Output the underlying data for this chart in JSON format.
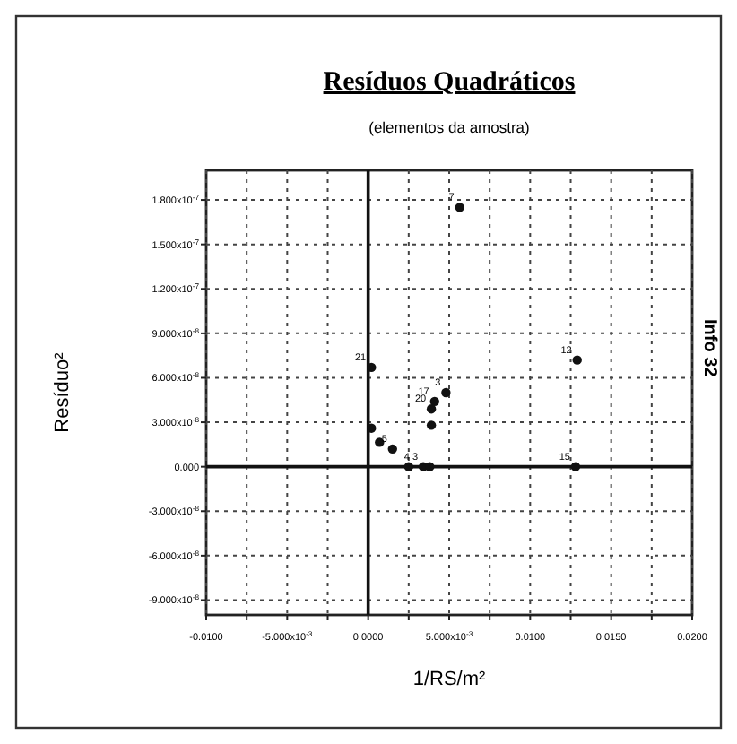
{
  "chart_data": {
    "type": "scatter",
    "title": "Resíduos Quadráticos",
    "subtitle": "(elementos da amostra)",
    "xlabel": "1/RS/m²",
    "ylabel": "Resíduo²",
    "x": [
      0.00565,
      0.0129,
      0.0002,
      0.0048,
      0.0041,
      0.0039,
      0.0039,
      0.0002,
      0.0007,
      0.0015,
      0.0025,
      0.0034,
      0.0038,
      0.0128
    ],
    "values": [
      1.75e-07,
      7.2e-08,
      6.7e-08,
      5e-08,
      4.4e-08,
      3.9e-08,
      2.8e-08,
      2.6e-08,
      1.65e-08,
      1.2e-08,
      0,
      0,
      0,
      0
    ],
    "color": "#111111",
    "marker": "circle",
    "xlim": [
      -0.01,
      0.02
    ],
    "xticks": [
      {
        "value": -0.01,
        "label": "-0.0100"
      },
      {
        "value": -0.0075,
        "label": null
      },
      {
        "value": -0.005,
        "label": "-5.000x10$^{-3}$"
      },
      {
        "value": -0.0025,
        "label": null
      },
      {
        "value": 0,
        "label": "0.0000"
      },
      {
        "value": 0.0025,
        "label": null
      },
      {
        "value": 0.005,
        "label": "5.000x10$^{-3}$"
      },
      {
        "value": 0.0075,
        "label": null
      },
      {
        "value": 0.01,
        "label": "0.0100"
      },
      {
        "value": 0.0125,
        "label": null
      },
      {
        "value": 0.015,
        "label": "0.0150"
      },
      {
        "value": 0.0175,
        "label": null
      },
      {
        "value": 0.02,
        "label": "0.0200"
      }
    ],
    "ylim": [
      -1e-07,
      2e-07
    ],
    "yticks": [
      {
        "value": -9e-08,
        "label": "-9.000x10$^{-8}$"
      },
      {
        "value": -6e-08,
        "label": "-6.000x10$^{-8}$"
      },
      {
        "value": -3e-08,
        "label": "-3.000x10$^{-8}$"
      },
      {
        "value": 0,
        "label": "0.000"
      },
      {
        "value": 3e-08,
        "label": "3.000x10$^{-8}$"
      },
      {
        "value": 6e-08,
        "label": "6.000x10$^{-8}$"
      },
      {
        "value": 9e-08,
        "label": "9.000x10$^{-8}$"
      },
      {
        "value": 1.2e-07,
        "label": "1.200x10$^{-7}$"
      },
      {
        "value": 1.5e-07,
        "label": "1.500x10$^{-7}$"
      },
      {
        "value": 1.8e-07,
        "label": "1.800x10$^{-7}$"
      }
    ],
    "grid": true,
    "annotations": [
      {
        "text": "7",
        "x": 0.00565,
        "y": 1.75e-07
      },
      {
        "text": "12",
        "x": 0.0129,
        "y": 7.2e-08
      },
      {
        "text": "21",
        "x": 0.0002,
        "y": 6.7e-08
      },
      {
        "text": "3",
        "x": 0.0048,
        "y": 5e-08
      },
      {
        "text": "17",
        "x": 0.0041,
        "y": 4.4e-08
      },
      {
        "text": "20",
        "x": 0.0039,
        "y": 3.9e-08
      },
      {
        "text": "5",
        "x": 0.0015,
        "y": 1.2e-08
      },
      {
        "text": "4 3",
        "x": 0.0034,
        "y": 0
      },
      {
        "text": "15",
        "x": 0.0128,
        "y": 0
      },
      "Info 32"
    ]
  }
}
